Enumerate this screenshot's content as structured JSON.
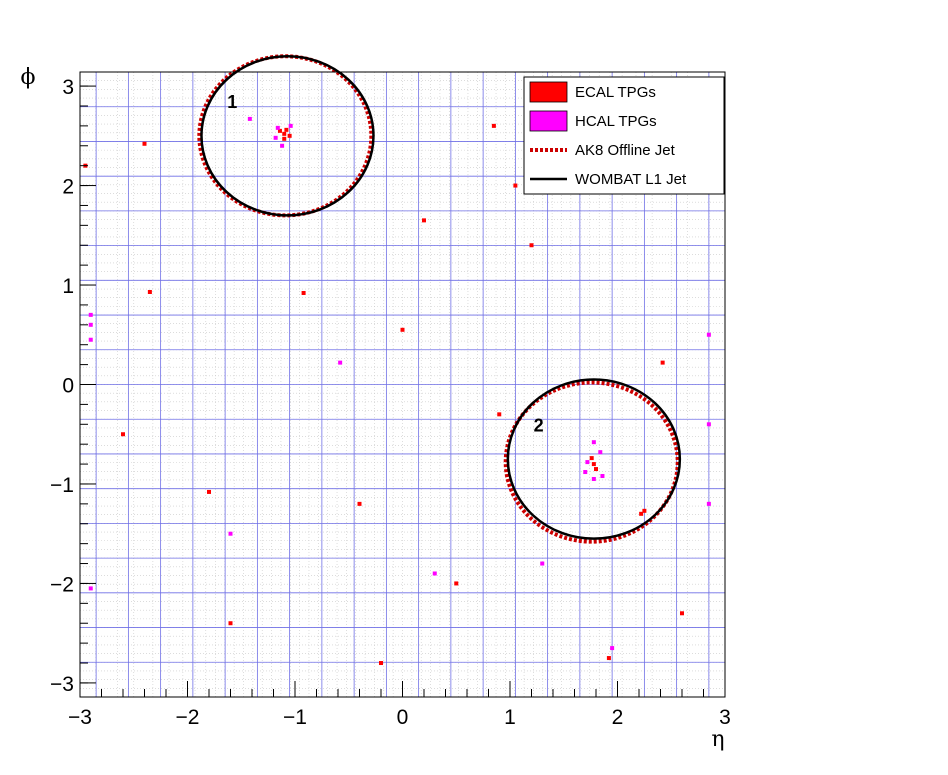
{
  "chart_data": {
    "type": "scatter",
    "title": "",
    "xlabel": "η",
    "ylabel": "ϕ",
    "xlim": [
      -3,
      3
    ],
    "ylim": [
      -3.1416,
      3.1416
    ],
    "grid": true,
    "legend_position": "top-right",
    "x_ticks": [
      {
        "value": -3,
        "label": "−3"
      },
      {
        "value": -2,
        "label": "−2"
      },
      {
        "value": -1,
        "label": "−1"
      },
      {
        "value": 0,
        "label": "0"
      },
      {
        "value": 1,
        "label": "1"
      },
      {
        "value": 2,
        "label": "2"
      },
      {
        "value": 3,
        "label": "3"
      }
    ],
    "y_ticks": [
      {
        "value": -3,
        "label": "−3"
      },
      {
        "value": -2,
        "label": "−2"
      },
      {
        "value": -1,
        "label": "−1"
      },
      {
        "value": 0,
        "label": "0"
      },
      {
        "value": 1,
        "label": "1"
      },
      {
        "value": 2,
        "label": "2"
      },
      {
        "value": 3,
        "label": "3"
      }
    ],
    "legend": [
      {
        "label": "ECAL TPGs",
        "kind": "box",
        "color": "#ff0000"
      },
      {
        "label": "HCAL TPGs",
        "kind": "box",
        "color": "#ff00ff"
      },
      {
        "label": "AK8 Offline Jet",
        "kind": "dotted-line",
        "color": "#cc0000"
      },
      {
        "label": "WOMBAT L1 Jet",
        "kind": "line",
        "color": "#000000"
      }
    ],
    "jets": [
      {
        "label": "1",
        "l1": {
          "eta": -1.07,
          "phi": 2.5,
          "r": 0.8
        },
        "offline": {
          "eta": -1.09,
          "phi": 2.5,
          "r": 0.8
        }
      },
      {
        "label": "2",
        "l1": {
          "eta": 1.78,
          "phi": -0.75,
          "r": 0.8
        },
        "offline": {
          "eta": 1.76,
          "phi": -0.78,
          "r": 0.8
        }
      }
    ],
    "series": [
      {
        "name": "ECAL TPGs",
        "color": "#ff0000",
        "points": [
          {
            "x": -1.1,
            "y": 2.52
          },
          {
            "x": -1.08,
            "y": 2.56
          },
          {
            "x": -1.1,
            "y": 2.47
          },
          {
            "x": -1.05,
            "y": 2.5
          },
          {
            "x": -1.14,
            "y": 2.55
          },
          {
            "x": -0.92,
            "y": 0.92
          },
          {
            "x": -1.8,
            "y": -1.08
          },
          {
            "x": 0.9,
            "y": -0.3
          },
          {
            "x": 1.78,
            "y": -0.8
          },
          {
            "x": 1.76,
            "y": -0.74
          },
          {
            "x": 1.8,
            "y": -0.85
          },
          {
            "x": 2.25,
            "y": -1.27
          },
          {
            "x": 2.22,
            "y": -1.3
          },
          {
            "x": 2.42,
            "y": 0.22
          },
          {
            "x": 1.92,
            "y": -2.75
          },
          {
            "x": -2.95,
            "y": 2.2
          },
          {
            "x": -2.4,
            "y": 2.42
          },
          {
            "x": -2.35,
            "y": 0.93
          },
          {
            "x": 0.85,
            "y": 2.6
          },
          {
            "x": 1.05,
            "y": 2.0
          },
          {
            "x": 0.2,
            "y": 1.65
          },
          {
            "x": -0.4,
            "y": -1.2
          },
          {
            "x": 0.5,
            "y": -2.0
          },
          {
            "x": -1.6,
            "y": -2.4
          },
          {
            "x": 1.2,
            "y": 1.4
          },
          {
            "x": -2.6,
            "y": -0.5
          },
          {
            "x": 2.6,
            "y": -2.3
          },
          {
            "x": 0.0,
            "y": 0.55
          },
          {
            "x": -0.2,
            "y": -2.8
          },
          {
            "x": 1.5,
            "y": 2.8
          }
        ]
      },
      {
        "name": "HCAL TPGs",
        "color": "#ff00ff",
        "points": [
          {
            "x": -1.42,
            "y": 2.67
          },
          {
            "x": -1.16,
            "y": 2.58
          },
          {
            "x": -1.18,
            "y": 2.48
          },
          {
            "x": -1.04,
            "y": 2.6
          },
          {
            "x": -1.12,
            "y": 2.4
          },
          {
            "x": -0.58,
            "y": 0.22
          },
          {
            "x": 1.72,
            "y": -0.78
          },
          {
            "x": 1.84,
            "y": -0.68
          },
          {
            "x": 1.78,
            "y": -0.58
          },
          {
            "x": 1.7,
            "y": -0.88
          },
          {
            "x": 1.86,
            "y": -0.92
          },
          {
            "x": 1.78,
            "y": -0.95
          },
          {
            "x": 1.3,
            "y": -1.8
          },
          {
            "x": 1.95,
            "y": -2.65
          },
          {
            "x": -2.9,
            "y": -2.05
          },
          {
            "x": -2.9,
            "y": 0.6
          },
          {
            "x": -2.9,
            "y": 0.7
          },
          {
            "x": -2.9,
            "y": 0.45
          },
          {
            "x": 2.85,
            "y": -1.2
          },
          {
            "x": 2.85,
            "y": -0.4
          },
          {
            "x": 2.85,
            "y": 2.2
          },
          {
            "x": 2.85,
            "y": 0.5
          },
          {
            "x": -1.6,
            "y": -1.5
          },
          {
            "x": 0.3,
            "y": -1.9
          }
        ]
      }
    ]
  }
}
